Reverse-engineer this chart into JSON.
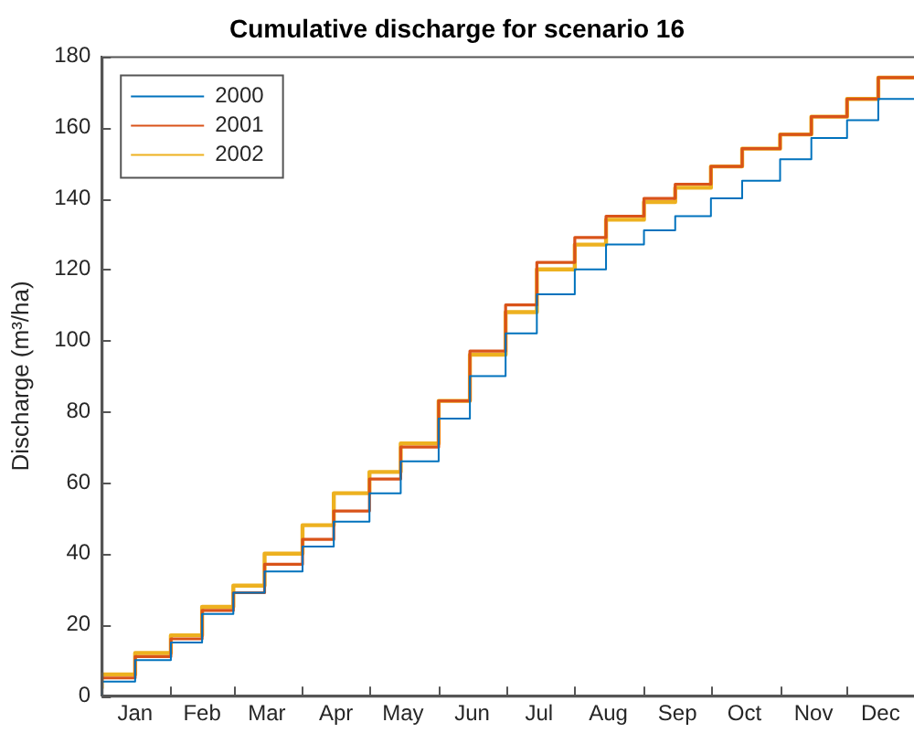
{
  "chart_data": {
    "type": "step",
    "title": "Cumulative discharge for scenario 16",
    "ylabel": "Discharge (m³/ha)",
    "x": [
      "--01-01",
      "--01-16",
      "--02-01",
      "--02-15",
      "--03-01",
      "--03-15",
      "--04-01",
      "--04-15",
      "--05-01",
      "--05-15",
      "--06-01",
      "--06-15",
      "--07-01",
      "--07-15",
      "--08-01",
      "--08-15",
      "--09-01",
      "--09-15",
      "--10-01",
      "--10-15",
      "--11-01",
      "--11-15",
      "--12-01",
      "--12-15",
      "--12-31"
    ],
    "xlim": [
      "--01-01",
      "--12-31"
    ],
    "xticks": [
      {
        "value": "--01-16",
        "label": "Jan"
      },
      {
        "value": "--02-01",
        "label": null
      },
      {
        "value": "--02-15",
        "label": "Feb"
      },
      {
        "value": "--03-01",
        "label": null
      },
      {
        "value": "--03-16",
        "label": "Mar"
      },
      {
        "value": "--04-01",
        "label": null
      },
      {
        "value": "--04-16",
        "label": "Apr"
      },
      {
        "value": "--05-01",
        "label": null
      },
      {
        "value": "--05-16",
        "label": "May"
      },
      {
        "value": "--06-01",
        "label": null
      },
      {
        "value": "--06-16",
        "label": "Jun"
      },
      {
        "value": "--07-01",
        "label": null
      },
      {
        "value": "--07-16",
        "label": "Jul"
      },
      {
        "value": "--08-01",
        "label": null
      },
      {
        "value": "--08-16",
        "label": "Aug"
      },
      {
        "value": "--09-01",
        "label": null
      },
      {
        "value": "--09-16",
        "label": "Sep"
      },
      {
        "value": "--10-01",
        "label": null
      },
      {
        "value": "--10-16",
        "label": "Oct"
      },
      {
        "value": "--11-01",
        "label": null
      },
      {
        "value": "--11-16",
        "label": "Nov"
      },
      {
        "value": "--12-01",
        "label": null
      },
      {
        "value": "--12-16",
        "label": "Dec"
      }
    ],
    "ylim": [
      0,
      180
    ],
    "yticks": [
      0,
      20,
      40,
      60,
      80,
      100,
      120,
      140,
      160,
      180
    ],
    "grid": false,
    "legend": "top left",
    "series": [
      {
        "name": "2000",
        "color": "#0072bd",
        "values": [
          0,
          4,
          10,
          15,
          23,
          29,
          35,
          42,
          49,
          57,
          66,
          78,
          90,
          102,
          113,
          120,
          127,
          131,
          135,
          140,
          145,
          151,
          157,
          162,
          168
        ]
      },
      {
        "name": "2001",
        "color": "#d95319",
        "values": [
          1,
          5,
          11,
          16,
          24,
          29,
          37,
          44,
          52,
          61,
          70,
          83,
          97,
          110,
          122,
          129,
          135,
          140,
          144,
          149,
          154,
          158,
          163,
          168,
          174
        ]
      },
      {
        "name": "2002",
        "color": "#edb120",
        "values": [
          2,
          6,
          12,
          17,
          25,
          31,
          40,
          48,
          57,
          63,
          71,
          83,
          96,
          108,
          120,
          127,
          134,
          139,
          143,
          149,
          154,
          158,
          163,
          168,
          174
        ]
      }
    ]
  }
}
